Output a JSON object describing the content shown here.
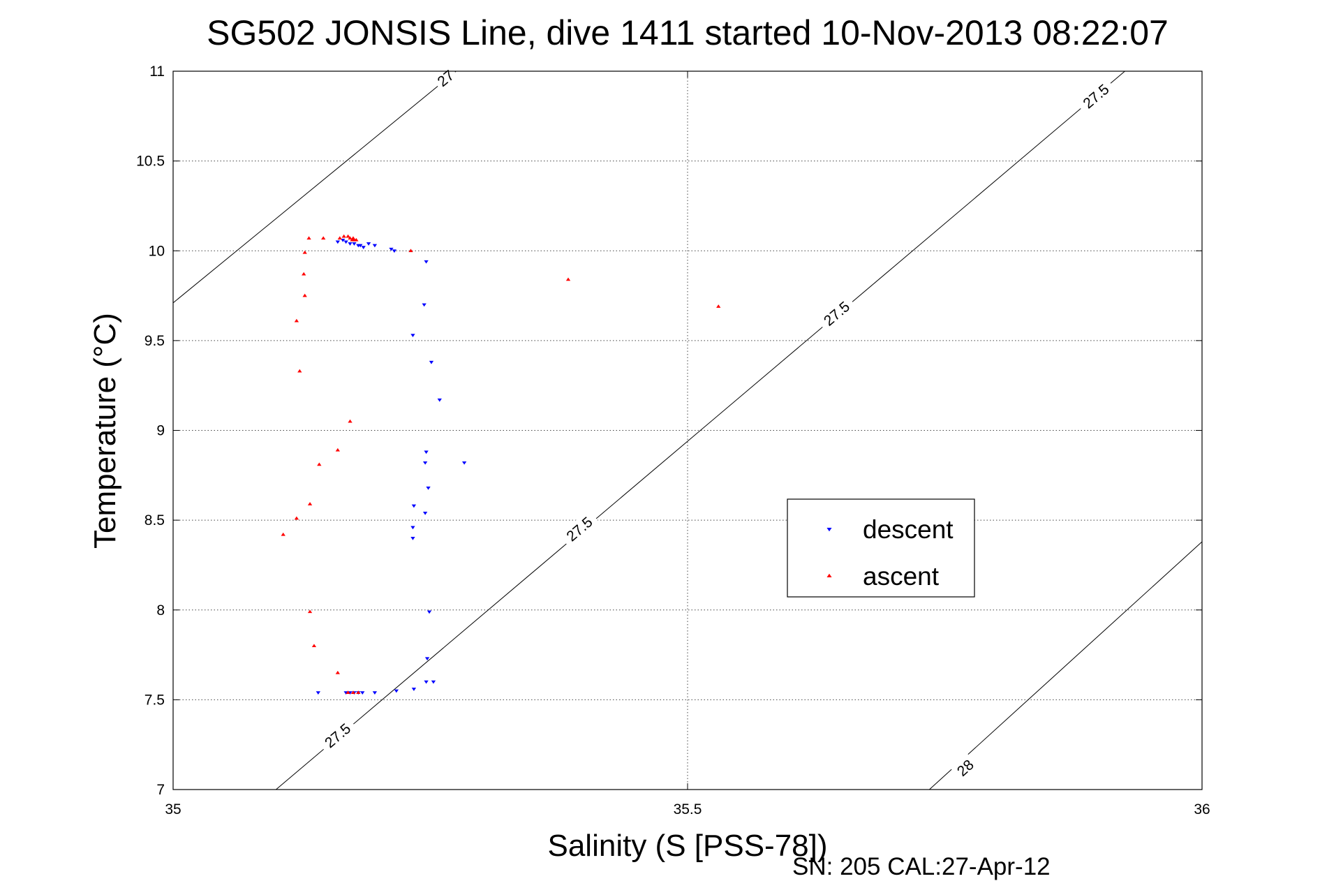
{
  "chart_data": {
    "type": "scatter",
    "title": "SG502 JONSIS Line, dive 1411 started 10-Nov-2013 08:22:07",
    "xlabel": "Salinity (S [PSS-78])",
    "ylabel": "Temperature (°C)",
    "xlim": [
      35,
      36
    ],
    "ylim": [
      7,
      11
    ],
    "xticks": [
      35,
      35.5,
      36
    ],
    "xtick_labels": [
      "35",
      "35.5",
      "36"
    ],
    "yticks": [
      7,
      7.5,
      8,
      8.5,
      9,
      9.5,
      10,
      10.5,
      11
    ],
    "ytick_labels": [
      "7",
      "7.5",
      "8",
      "8.5",
      "9",
      "9.5",
      "10",
      "10.5",
      "11"
    ],
    "grid": true,
    "legend_position": "right-center",
    "footer": "SN: 205  CAL:27-Apr-12",
    "series": [
      {
        "name": "descent",
        "color": "#0000ff",
        "marker": "triangle-down",
        "x": [
          35.16,
          35.165,
          35.168,
          35.172,
          35.176,
          35.18,
          35.182,
          35.185,
          35.19,
          35.196,
          35.212,
          35.215,
          35.246,
          35.244,
          35.233,
          35.251,
          35.259,
          35.246,
          35.283,
          35.245,
          35.248,
          35.234,
          35.245,
          35.233,
          35.233,
          35.249,
          35.247,
          35.253,
          35.141,
          35.168,
          35.172,
          35.176,
          35.18,
          35.184,
          35.196,
          35.217,
          35.234,
          35.246
        ],
        "y": [
          10.05,
          10.06,
          10.05,
          10.04,
          10.04,
          10.03,
          10.03,
          10.02,
          10.04,
          10.03,
          10.01,
          10.0,
          9.94,
          9.7,
          9.53,
          9.38,
          9.17,
          8.88,
          8.82,
          8.82,
          8.68,
          8.58,
          8.54,
          8.46,
          8.4,
          7.99,
          7.73,
          7.6,
          7.54,
          7.54,
          7.54,
          7.54,
          7.54,
          7.54,
          7.54,
          7.55,
          7.56,
          7.6
        ]
      },
      {
        "name": "ascent",
        "color": "#ff0000",
        "marker": "triangle-up",
        "x": [
          35.132,
          35.146,
          35.162,
          35.166,
          35.17,
          35.172,
          35.175,
          35.174,
          35.176,
          35.178,
          35.231,
          35.384,
          35.53,
          35.128,
          35.127,
          35.128,
          35.12,
          35.123,
          35.172,
          35.16,
          35.142,
          35.133,
          35.12,
          35.107,
          35.133,
          35.137,
          35.16,
          35.17,
          35.175,
          35.18
        ],
        "y": [
          10.07,
          10.07,
          10.07,
          10.08,
          10.08,
          10.07,
          10.07,
          10.06,
          10.06,
          10.06,
          10.0,
          9.84,
          9.69,
          9.99,
          9.87,
          9.75,
          9.61,
          9.33,
          9.05,
          8.89,
          8.81,
          8.59,
          8.51,
          8.42,
          7.99,
          7.8,
          7.65,
          7.54,
          7.54,
          7.54
        ]
      }
    ],
    "contours": [
      {
        "label": "27",
        "points": [
          [
            35.0,
            9.71
          ],
          [
            35.275,
            11.0
          ]
        ],
        "labels_at": [
          [
            35.265,
            10.96
          ]
        ]
      },
      {
        "label": "27.5",
        "points": [
          [
            35.1,
            7.0
          ],
          [
            35.925,
            11.0
          ]
        ],
        "labels_at": [
          [
            35.16,
            7.3
          ],
          [
            35.395,
            8.45
          ],
          [
            35.645,
            9.65
          ],
          [
            35.897,
            10.86
          ]
        ]
      },
      {
        "label": "28",
        "points": [
          [
            35.735,
            7.0
          ],
          [
            36.0,
            8.38
          ]
        ],
        "labels_at": [
          [
            35.77,
            7.12
          ]
        ]
      }
    ]
  }
}
